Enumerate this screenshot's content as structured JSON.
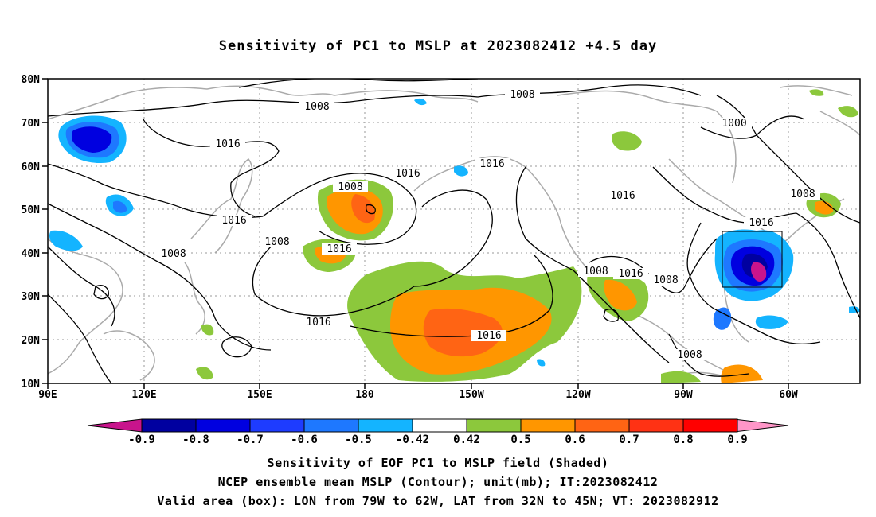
{
  "title": "Sensitivity of PC1 to MSLP at 2023082412 +4.5 day",
  "map": {
    "lon_labels": [
      "90E",
      "120E",
      "150E",
      "180",
      "150W",
      "120W",
      "90W",
      "60W"
    ],
    "lat_labels": [
      "80N",
      "70N",
      "60N",
      "50N",
      "40N",
      "30N",
      "20N",
      "10N"
    ],
    "contour_labels": [
      "1008",
      "1008",
      "1000",
      "1016",
      "1016",
      "1016",
      "1008",
      "1016",
      "1016",
      "1008",
      "1016",
      "1008",
      "1016",
      "1008",
      "1016",
      "1008",
      "1016",
      "1016",
      "1008",
      "1008"
    ],
    "box": {
      "lon_min": "79W",
      "lon_max": "62W",
      "lat_min": "32N",
      "lat_max": "45N"
    }
  },
  "colorbar": {
    "labels": [
      "-0.9",
      "-0.8",
      "-0.7",
      "-0.6",
      "-0.5",
      "-0.42",
      "0.42",
      "0.5",
      "0.6",
      "0.7",
      "0.8",
      "0.9"
    ],
    "colors": [
      "#0000a0",
      "#0000e0",
      "#1e3cff",
      "#1e78ff",
      "#14b4ff",
      "#ffffff",
      "#8cc83c",
      "#ff9600",
      "#ff6414",
      "#ff3214",
      "#ff0000"
    ],
    "low_end_color": "#c8148c",
    "high_end_color": "#ff96c8"
  },
  "captions": {
    "line1": "Sensitivity of EOF PC1 to MSLP field (Shaded)",
    "line2": "NCEP ensemble mean MSLP (Contour); unit(mb); IT:2023082412",
    "line3": "Valid area (box): LON from 79W to 62W, LAT from 32N to 45N; VT: 2023082912"
  }
}
